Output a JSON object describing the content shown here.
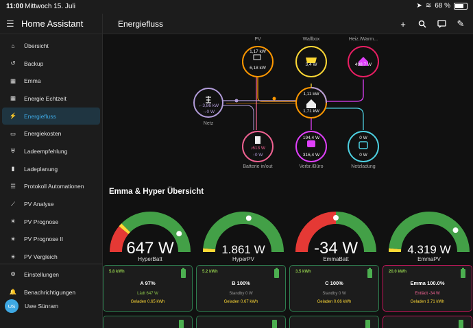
{
  "status": {
    "time": "11:00",
    "date": "Mittwoch 15. Juli",
    "battery": "68 %"
  },
  "app_title": "Home Assistant",
  "page_title": "Energiefluss",
  "sidebar": {
    "items": [
      {
        "label": "Übersicht",
        "icon": "home-icon"
      },
      {
        "label": "Backup",
        "icon": "backup-icon"
      },
      {
        "label": "Emma",
        "icon": "solar-panel-icon"
      },
      {
        "label": "Energie Echtzeit",
        "icon": "solar-panel-icon"
      },
      {
        "label": "Energiefluss",
        "icon": "energy-flow-icon",
        "active": true
      },
      {
        "label": "Energiekosten",
        "icon": "cash-icon"
      },
      {
        "label": "Ladeempfehlung",
        "icon": "shield-icon"
      },
      {
        "label": "Ladeplanung",
        "icon": "battery-charging-icon"
      },
      {
        "label": "Protokoll Automationen",
        "icon": "list-icon"
      },
      {
        "label": "PV Analyse",
        "icon": "chart-line-icon"
      },
      {
        "label": "PV Prognose",
        "icon": "solar-power-icon"
      },
      {
        "label": "PV Prognose II",
        "icon": "solar-power-icon"
      },
      {
        "label": "PV Vergleich",
        "icon": "solar-power-icon"
      }
    ],
    "bottom": [
      {
        "label": "Einstellungen",
        "icon": "gear-icon"
      },
      {
        "label": "Benachrichtigungen",
        "icon": "bell-icon"
      }
    ],
    "user": {
      "initials": "US",
      "name": "Uwe Sünram"
    }
  },
  "flow": {
    "pv": {
      "label": "PV",
      "top": "1,17 kW",
      "bottom": "6,18 kW"
    },
    "wallbox": {
      "label": "Wallbox",
      "value": "3,4 W"
    },
    "heat": {
      "label": "Heiz./Warm...",
      "value": "498,7 W"
    },
    "grid": {
      "label": "Netz",
      "top": "←3,86 kW",
      "bottom": "→0 W"
    },
    "home": {
      "top": "1,11 kW",
      "bottom": "1,71 kW"
    },
    "battery": {
      "label": "Batterie in/out",
      "top": "↓613 W",
      "bottom": "↑0 W"
    },
    "consumer": {
      "label": "Verbr./Büro",
      "top": "194,4 W",
      "bottom": "316,4 W"
    },
    "netload": {
      "label": "Netzladung",
      "top": "0 W",
      "bottom": "0 W"
    }
  },
  "section_title": "Emma & Hyper Übersicht",
  "gauges": [
    {
      "label": "HyperBatt",
      "value": "647 W",
      "fraction": 0.82
    },
    {
      "label": "HyperPV",
      "value": "1.861 W",
      "fraction": 0.55
    },
    {
      "label": "EmmaBatt",
      "value": "-34 W",
      "fraction": 0.5
    },
    {
      "label": "EmmaPV",
      "value": "4.319 W",
      "fraction": 0.78
    }
  ],
  "cards": [
    {
      "kwh": "5.8 kWh",
      "name": "A 97%",
      "state": "Lädt 647 W",
      "loaded": "Geladen 0.65 kWh"
    },
    {
      "kwh": "5.2 kWh",
      "name": "B 100%",
      "state": "Standby 0 W",
      "loaded": "Geladen 0.67 kWh"
    },
    {
      "kwh": "3.5 kWh",
      "name": "C 100%",
      "state": "Standby 0 W",
      "loaded": "Geladen 0.66 kWh"
    },
    {
      "kwh": "20.0 kWh",
      "name": "Emma 100.0%",
      "state": "Entlädt -34 W",
      "loaded": "Geladen 3.71 kWh"
    }
  ],
  "colors": {
    "accent": "#3ea8e3",
    "pv": "#ff9800",
    "grid": "#b39ddb",
    "battery": "#f06292",
    "green": "#43a047",
    "red": "#e53935"
  }
}
